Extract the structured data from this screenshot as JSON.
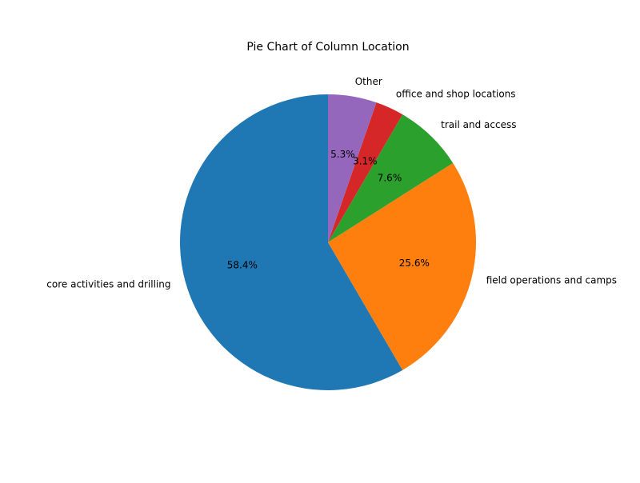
{
  "chart_data": {
    "type": "pie",
    "title": "Pie Chart of Column Location",
    "categories": [
      "core activities and drilling",
      "field operations and camps",
      "trail and access",
      "office and shop locations",
      "Other"
    ],
    "values": [
      58.4,
      25.6,
      7.6,
      3.1,
      5.3
    ],
    "percent_labels": [
      "58.4%",
      "25.6%",
      "7.6%",
      "3.1%",
      "5.3%"
    ],
    "colors": [
      "#1f77b4",
      "#ff7f0e",
      "#2ca02c",
      "#d62728",
      "#9467bd"
    ],
    "start_angle_deg": 90,
    "direction": "counterclockwise"
  }
}
